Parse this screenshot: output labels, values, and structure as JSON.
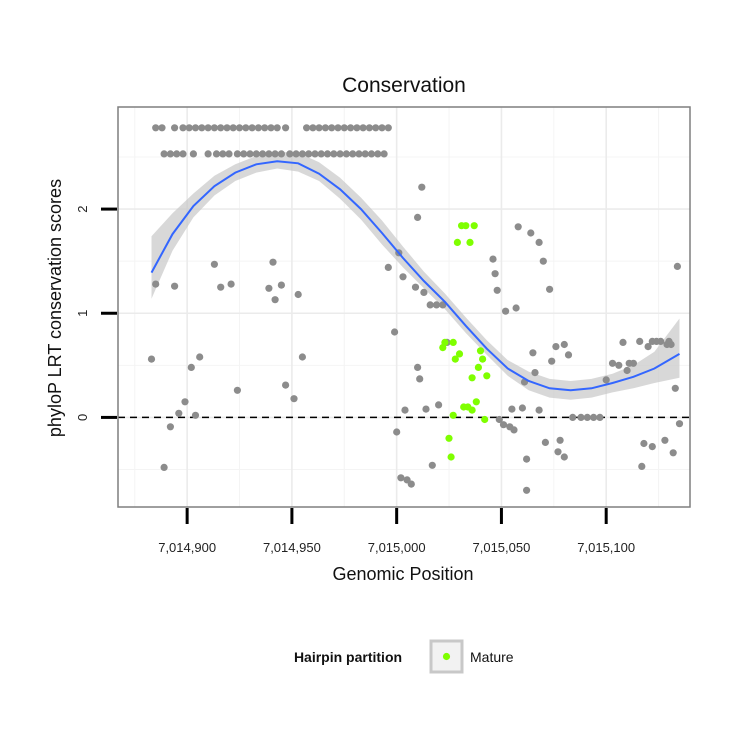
{
  "chart_data": {
    "type": "scatter",
    "title": "Conservation",
    "xlabel": "Genomic Position",
    "ylabel": "phyloP LRT conservation scores",
    "xlim": [
      7014867,
      7015140
    ],
    "ylim": [
      -0.86,
      2.98
    ],
    "x_ticks": [
      7014900,
      7014950,
      7015000,
      7015050,
      7015100
    ],
    "x_tick_labels": [
      "7,014,900",
      "7,014,950",
      "7,015,000",
      "7,015,050",
      "7,015,100"
    ],
    "y_ticks": [
      0,
      1,
      2
    ],
    "y_tick_labels": [
      "0",
      "1",
      "2"
    ],
    "grid": true,
    "reference_line": {
      "y": 0,
      "style": "dashed"
    },
    "legend": {
      "title": "Hairpin partition",
      "placement": "bottom",
      "entries": [
        {
          "label": "Mature",
          "color": "#7FFF00"
        }
      ]
    },
    "colors": {
      "other": "#8C8C8C",
      "mature": "#7FFF00",
      "smooth": "#3366FF",
      "band": "#C8C8C8"
    },
    "series": [
      {
        "group": "other",
        "points": [
          [
            7014885,
            2.78
          ],
          [
            7014888,
            2.78
          ],
          [
            7014894,
            2.78
          ],
          [
            7014898,
            2.78
          ],
          [
            7014901,
            2.78
          ],
          [
            7014904,
            2.78
          ],
          [
            7014907,
            2.78
          ],
          [
            7014910,
            2.78
          ],
          [
            7014913,
            2.78
          ],
          [
            7014916,
            2.78
          ],
          [
            7014919,
            2.78
          ],
          [
            7014922,
            2.78
          ],
          [
            7014925,
            2.78
          ],
          [
            7014928,
            2.78
          ],
          [
            7014931,
            2.78
          ],
          [
            7014934,
            2.78
          ],
          [
            7014937,
            2.78
          ],
          [
            7014940,
            2.78
          ],
          [
            7014943,
            2.78
          ],
          [
            7014947,
            2.78
          ],
          [
            7014957,
            2.78
          ],
          [
            7014960,
            2.78
          ],
          [
            7014963,
            2.78
          ],
          [
            7014966,
            2.78
          ],
          [
            7014969,
            2.78
          ],
          [
            7014972,
            2.78
          ],
          [
            7014975,
            2.78
          ],
          [
            7014978,
            2.78
          ],
          [
            7014981,
            2.78
          ],
          [
            7014984,
            2.78
          ],
          [
            7014987,
            2.78
          ],
          [
            7014990,
            2.78
          ],
          [
            7014993,
            2.78
          ],
          [
            7014996,
            2.78
          ],
          [
            7014889,
            2.53
          ],
          [
            7014892,
            2.53
          ],
          [
            7014895,
            2.53
          ],
          [
            7014898,
            2.53
          ],
          [
            7014903,
            2.53
          ],
          [
            7014910,
            2.53
          ],
          [
            7014914,
            2.53
          ],
          [
            7014917,
            2.53
          ],
          [
            7014920,
            2.53
          ],
          [
            7014924,
            2.53
          ],
          [
            7014927,
            2.53
          ],
          [
            7014930,
            2.53
          ],
          [
            7014933,
            2.53
          ],
          [
            7014936,
            2.53
          ],
          [
            7014939,
            2.53
          ],
          [
            7014942,
            2.53
          ],
          [
            7014945,
            2.53
          ],
          [
            7014949,
            2.53
          ],
          [
            7014952,
            2.53
          ],
          [
            7014955,
            2.53
          ],
          [
            7014958,
            2.53
          ],
          [
            7014961,
            2.53
          ],
          [
            7014964,
            2.53
          ],
          [
            7014967,
            2.53
          ],
          [
            7014970,
            2.53
          ],
          [
            7014973,
            2.53
          ],
          [
            7014976,
            2.53
          ],
          [
            7014979,
            2.53
          ],
          [
            7014982,
            2.53
          ],
          [
            7014985,
            2.53
          ],
          [
            7014988,
            2.53
          ],
          [
            7014991,
            2.53
          ],
          [
            7014994,
            2.53
          ],
          [
            7014883,
            0.56
          ],
          [
            7014885,
            1.28
          ],
          [
            7014889,
            -0.48
          ],
          [
            7014892,
            -0.09
          ],
          [
            7014894,
            1.26
          ],
          [
            7014896,
            0.04
          ],
          [
            7014899,
            0.15
          ],
          [
            7014902,
            0.48
          ],
          [
            7014904,
            0.02
          ],
          [
            7014906,
            0.58
          ],
          [
            7014913,
            1.47
          ],
          [
            7014916,
            1.25
          ],
          [
            7014921,
            1.28
          ],
          [
            7014924,
            0.26
          ],
          [
            7014939,
            1.24
          ],
          [
            7014941,
            1.49
          ],
          [
            7014942,
            1.13
          ],
          [
            7014945,
            1.27
          ],
          [
            7014947,
            0.31
          ],
          [
            7014951,
            0.18
          ],
          [
            7014953,
            1.18
          ],
          [
            7014955,
            0.58
          ],
          [
            7014996,
            1.44
          ],
          [
            7014999,
            0.82
          ],
          [
            7015000,
            -0.14
          ],
          [
            7015001,
            1.58
          ],
          [
            7015002,
            -0.58
          ],
          [
            7015003,
            1.35
          ],
          [
            7015004,
            0.07
          ],
          [
            7015005,
            -0.6
          ],
          [
            7015007,
            -0.64
          ],
          [
            7015009,
            1.25
          ],
          [
            7015010,
            0.48
          ],
          [
            7015010,
            1.92
          ],
          [
            7015011,
            0.37
          ],
          [
            7015012,
            2.21
          ],
          [
            7015013,
            1.2
          ],
          [
            7015014,
            0.08
          ],
          [
            7015016,
            1.08
          ],
          [
            7015017,
            -0.46
          ],
          [
            7015019,
            1.08
          ],
          [
            7015020,
            0.12
          ],
          [
            7015022,
            1.08
          ],
          [
            7015024,
            0.72
          ],
          [
            7015046,
            1.52
          ],
          [
            7015047,
            1.38
          ],
          [
            7015048,
            1.22
          ],
          [
            7015049,
            -0.02
          ],
          [
            7015051,
            -0.07
          ],
          [
            7015052,
            1.02
          ],
          [
            7015054,
            -0.09
          ],
          [
            7015055,
            0.08
          ],
          [
            7015056,
            -0.12
          ],
          [
            7015057,
            1.05
          ],
          [
            7015058,
            1.83
          ],
          [
            7015060,
            0.09
          ],
          [
            7015061,
            0.34
          ],
          [
            7015062,
            -0.4
          ],
          [
            7015062,
            -0.7
          ],
          [
            7015064,
            1.77
          ],
          [
            7015065,
            0.62
          ],
          [
            7015066,
            0.43
          ],
          [
            7015068,
            1.68
          ],
          [
            7015068,
            0.07
          ],
          [
            7015070,
            1.5
          ],
          [
            7015071,
            -0.24
          ],
          [
            7015073,
            1.23
          ],
          [
            7015074,
            0.54
          ],
          [
            7015076,
            0.68
          ],
          [
            7015077,
            -0.33
          ],
          [
            7015078,
            -0.22
          ],
          [
            7015080,
            0.7
          ],
          [
            7015080,
            -0.38
          ],
          [
            7015082,
            0.6
          ],
          [
            7015084,
            0.0
          ],
          [
            7015088,
            0.0
          ],
          [
            7015091,
            0.0
          ],
          [
            7015094,
            0.0
          ],
          [
            7015097,
            0.0
          ],
          [
            7015100,
            0.36
          ],
          [
            7015103,
            0.52
          ],
          [
            7015106,
            0.5
          ],
          [
            7015108,
            0.72
          ],
          [
            7015110,
            0.45
          ],
          [
            7015111,
            0.52
          ],
          [
            7015113,
            0.52
          ],
          [
            7015116,
            0.73
          ],
          [
            7015117,
            -0.47
          ],
          [
            7015118,
            -0.25
          ],
          [
            7015120,
            0.68
          ],
          [
            7015122,
            0.73
          ],
          [
            7015122,
            -0.28
          ],
          [
            7015124,
            0.73
          ],
          [
            7015126,
            0.73
          ],
          [
            7015128,
            -0.22
          ],
          [
            7015129,
            0.7
          ],
          [
            7015130,
            0.73
          ],
          [
            7015131,
            0.7
          ],
          [
            7015132,
            -0.34
          ],
          [
            7015133,
            0.28
          ],
          [
            7015134,
            1.45
          ],
          [
            7015135,
            -0.06
          ]
        ]
      },
      {
        "group": "mature",
        "name": "Mature",
        "points": [
          [
            7015022,
            0.67
          ],
          [
            7015023,
            0.72
          ],
          [
            7015025,
            -0.2
          ],
          [
            7015026,
            -0.38
          ],
          [
            7015027,
            0.72
          ],
          [
            7015027,
            0.02
          ],
          [
            7015028,
            0.56
          ],
          [
            7015029,
            1.68
          ],
          [
            7015030,
            0.61
          ],
          [
            7015031,
            1.84
          ],
          [
            7015032,
            0.1
          ],
          [
            7015033,
            1.84
          ],
          [
            7015034,
            0.1
          ],
          [
            7015035,
            1.68
          ],
          [
            7015036,
            0.38
          ],
          [
            7015036,
            0.07
          ],
          [
            7015037,
            1.84
          ],
          [
            7015038,
            0.15
          ],
          [
            7015039,
            0.48
          ],
          [
            7015040,
            0.64
          ],
          [
            7015041,
            0.56
          ],
          [
            7015042,
            -0.02
          ],
          [
            7015043,
            0.4
          ]
        ]
      }
    ],
    "smooth": {
      "x": [
        7014883,
        7014893,
        7014903,
        7014913,
        7014923,
        7014933,
        7014943,
        7014953,
        7014963,
        7014973,
        7014983,
        7014993,
        7015003,
        7015013,
        7015023,
        7015033,
        7015043,
        7015053,
        7015063,
        7015073,
        7015083,
        7015093,
        7015103,
        7015113,
        7015123,
        7015135
      ],
      "y": [
        1.39,
        1.76,
        2.03,
        2.22,
        2.35,
        2.43,
        2.46,
        2.44,
        2.34,
        2.19,
        2.0,
        1.77,
        1.53,
        1.31,
        1.11,
        0.88,
        0.66,
        0.47,
        0.35,
        0.28,
        0.26,
        0.28,
        0.33,
        0.39,
        0.47,
        0.61
      ],
      "lower": [
        1.14,
        1.6,
        1.92,
        2.13,
        2.27,
        2.35,
        2.39,
        2.36,
        2.27,
        2.1,
        1.9,
        1.66,
        1.44,
        1.24,
        1.04,
        0.81,
        0.6,
        0.4,
        0.26,
        0.19,
        0.17,
        0.19,
        0.24,
        0.28,
        0.33,
        0.38
      ],
      "upper": [
        1.74,
        1.96,
        2.15,
        2.32,
        2.43,
        2.51,
        2.55,
        2.54,
        2.45,
        2.3,
        2.11,
        1.89,
        1.64,
        1.4,
        1.19,
        0.96,
        0.74,
        0.55,
        0.44,
        0.37,
        0.35,
        0.37,
        0.42,
        0.5,
        0.63,
        0.95
      ]
    }
  }
}
